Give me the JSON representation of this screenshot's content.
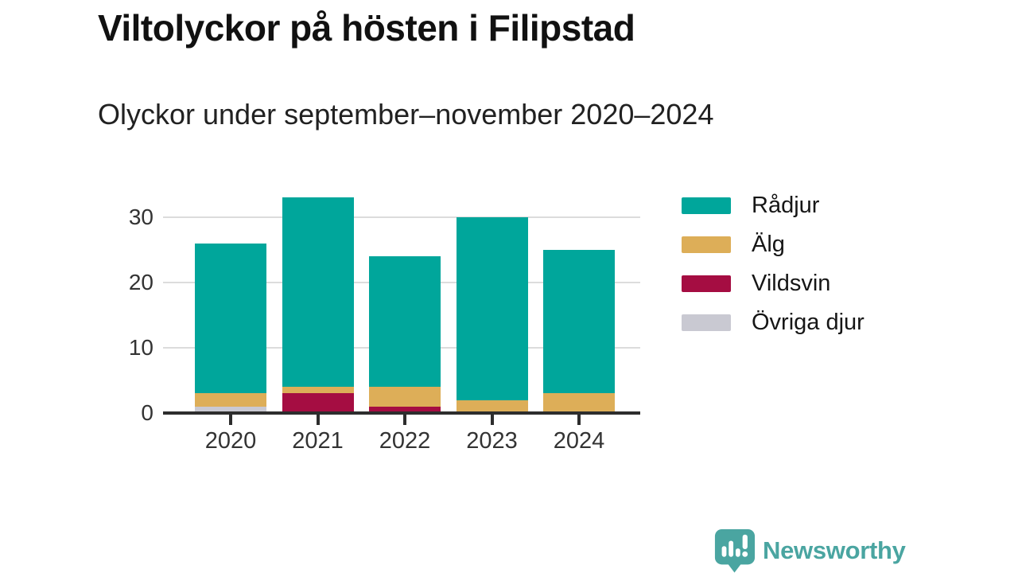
{
  "chart_data": {
    "type": "bar",
    "stacked": true,
    "title": "Viltolyckor på hösten i Filipstad",
    "subtitle": "Olyckor under september–november 2020–2024",
    "categories": [
      "2020",
      "2021",
      "2022",
      "2023",
      "2024"
    ],
    "series": [
      {
        "name": "Rådjur",
        "color": "#00a69b",
        "values": [
          23,
          29,
          20,
          28,
          22
        ]
      },
      {
        "name": "Älg",
        "color": "#ddae58",
        "values": [
          2,
          1,
          3,
          2,
          3
        ]
      },
      {
        "name": "Vildsvin",
        "color": "#a50d42",
        "values": [
          0,
          3,
          1,
          0,
          0
        ]
      },
      {
        "name": "Övriga djur",
        "color": "#c9c9d2",
        "values": [
          1,
          0,
          0,
          0,
          0
        ]
      }
    ],
    "totals": [
      26,
      33,
      24,
      30,
      25
    ],
    "xlabel": "",
    "ylabel": "",
    "ylim": [
      0,
      35
    ],
    "yticks": [
      0,
      10,
      20,
      30
    ],
    "grid": true,
    "legend_position": "right",
    "stack_note": "series listed top-to-bottom of stack; legend order matches"
  },
  "footer": {
    "brand": "Newsworthy",
    "brand_color": "#4aa5a1",
    "icon": "newsworthy-speech-bubble-bar-chart-icon"
  }
}
